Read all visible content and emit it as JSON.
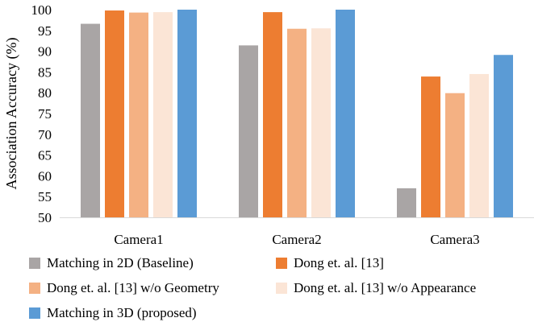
{
  "chart_data": {
    "type": "bar",
    "title": "",
    "xlabel": "",
    "ylabel": "Association Accuracy (%)",
    "ylim": [
      50,
      100
    ],
    "yticks": [
      50,
      55,
      60,
      65,
      70,
      75,
      80,
      85,
      90,
      95,
      100
    ],
    "categories": [
      "Camera1",
      "Camera2",
      "Camera3"
    ],
    "grid": false,
    "legend_position": "bottom",
    "series": [
      {
        "name": "Matching in 2D (Baseline)",
        "color": "#a9a5a5",
        "values": [
          96.6,
          91.4,
          57.0
        ]
      },
      {
        "name": "Dong et. al. [13]",
        "color": "#ed7d31",
        "values": [
          99.8,
          99.4,
          83.9
        ]
      },
      {
        "name": "Dong et. al. [13] w/o Geometry",
        "color": "#f4b183",
        "values": [
          99.3,
          95.4,
          79.9
        ]
      },
      {
        "name": "Dong et. al. [13] w/o Appearance",
        "color": "#fbe5d6",
        "values": [
          99.4,
          95.5,
          84.5
        ]
      },
      {
        "name": "Matching in 3D (proposed)",
        "color": "#5b9bd5",
        "values": [
          100.0,
          100.0,
          89.1
        ]
      }
    ]
  }
}
